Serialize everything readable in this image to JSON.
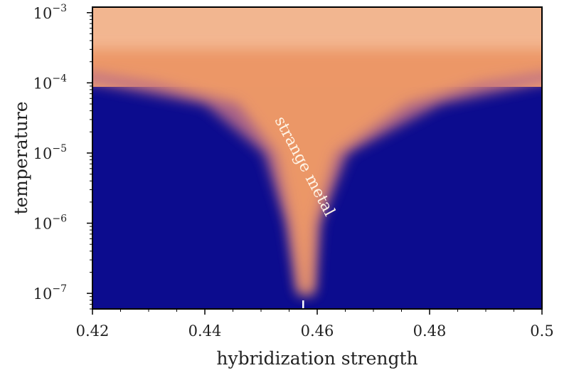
{
  "chart_data": {
    "type": "heatmap",
    "title": "",
    "xlabel": "hybridization strength",
    "ylabel": "temperature",
    "xlim": [
      0.42,
      0.5
    ],
    "ylim": [
      6e-08,
      0.0012
    ],
    "y_scale": "log",
    "grid": false,
    "legend": "none",
    "x_ticks": [
      {
        "value": 0.42,
        "label": "0.42"
      },
      {
        "value": 0.44,
        "label": "0.44"
      },
      {
        "value": 0.46,
        "label": "0.46"
      },
      {
        "value": 0.48,
        "label": "0.48"
      },
      {
        "value": 0.5,
        "label": "0.5"
      }
    ],
    "y_ticks": [
      {
        "value": 1e-07,
        "base": "10",
        "exponent": "−7"
      },
      {
        "value": 1e-06,
        "base": "10",
        "exponent": "−6"
      },
      {
        "value": 1e-05,
        "base": "10",
        "exponent": "−5"
      },
      {
        "value": 0.0001,
        "base": "10",
        "exponent": "−4"
      },
      {
        "value": 0.001,
        "base": "10",
        "exponent": "−3"
      }
    ],
    "critical_point": {
      "x": 0.4575,
      "marker": "white tick at bottom axis"
    },
    "annotation": {
      "text": "strange metal",
      "x": 0.457,
      "y": 6e-06
    },
    "colormap": {
      "low": "#0c0c8e",
      "mid": "#c08070",
      "high": "#f0a06a",
      "top": "#f5c8ac"
    },
    "regions": [
      {
        "name": "strange-metal fan",
        "description_values": [
          {
            "y": 1e-07,
            "x_low": 0.4565,
            "x_high": 0.4595
          },
          {
            "y": 1e-06,
            "x_low": 0.4545,
            "x_high": 0.4605
          },
          {
            "y": 1e-05,
            "x_low": 0.4505,
            "x_high": 0.4655
          },
          {
            "y": 5e-05,
            "x_low": 0.44,
            "x_high": 0.482
          },
          {
            "y": 0.0001,
            "x_low": 0.42,
            "x_high": 0.5
          }
        ]
      }
    ]
  }
}
